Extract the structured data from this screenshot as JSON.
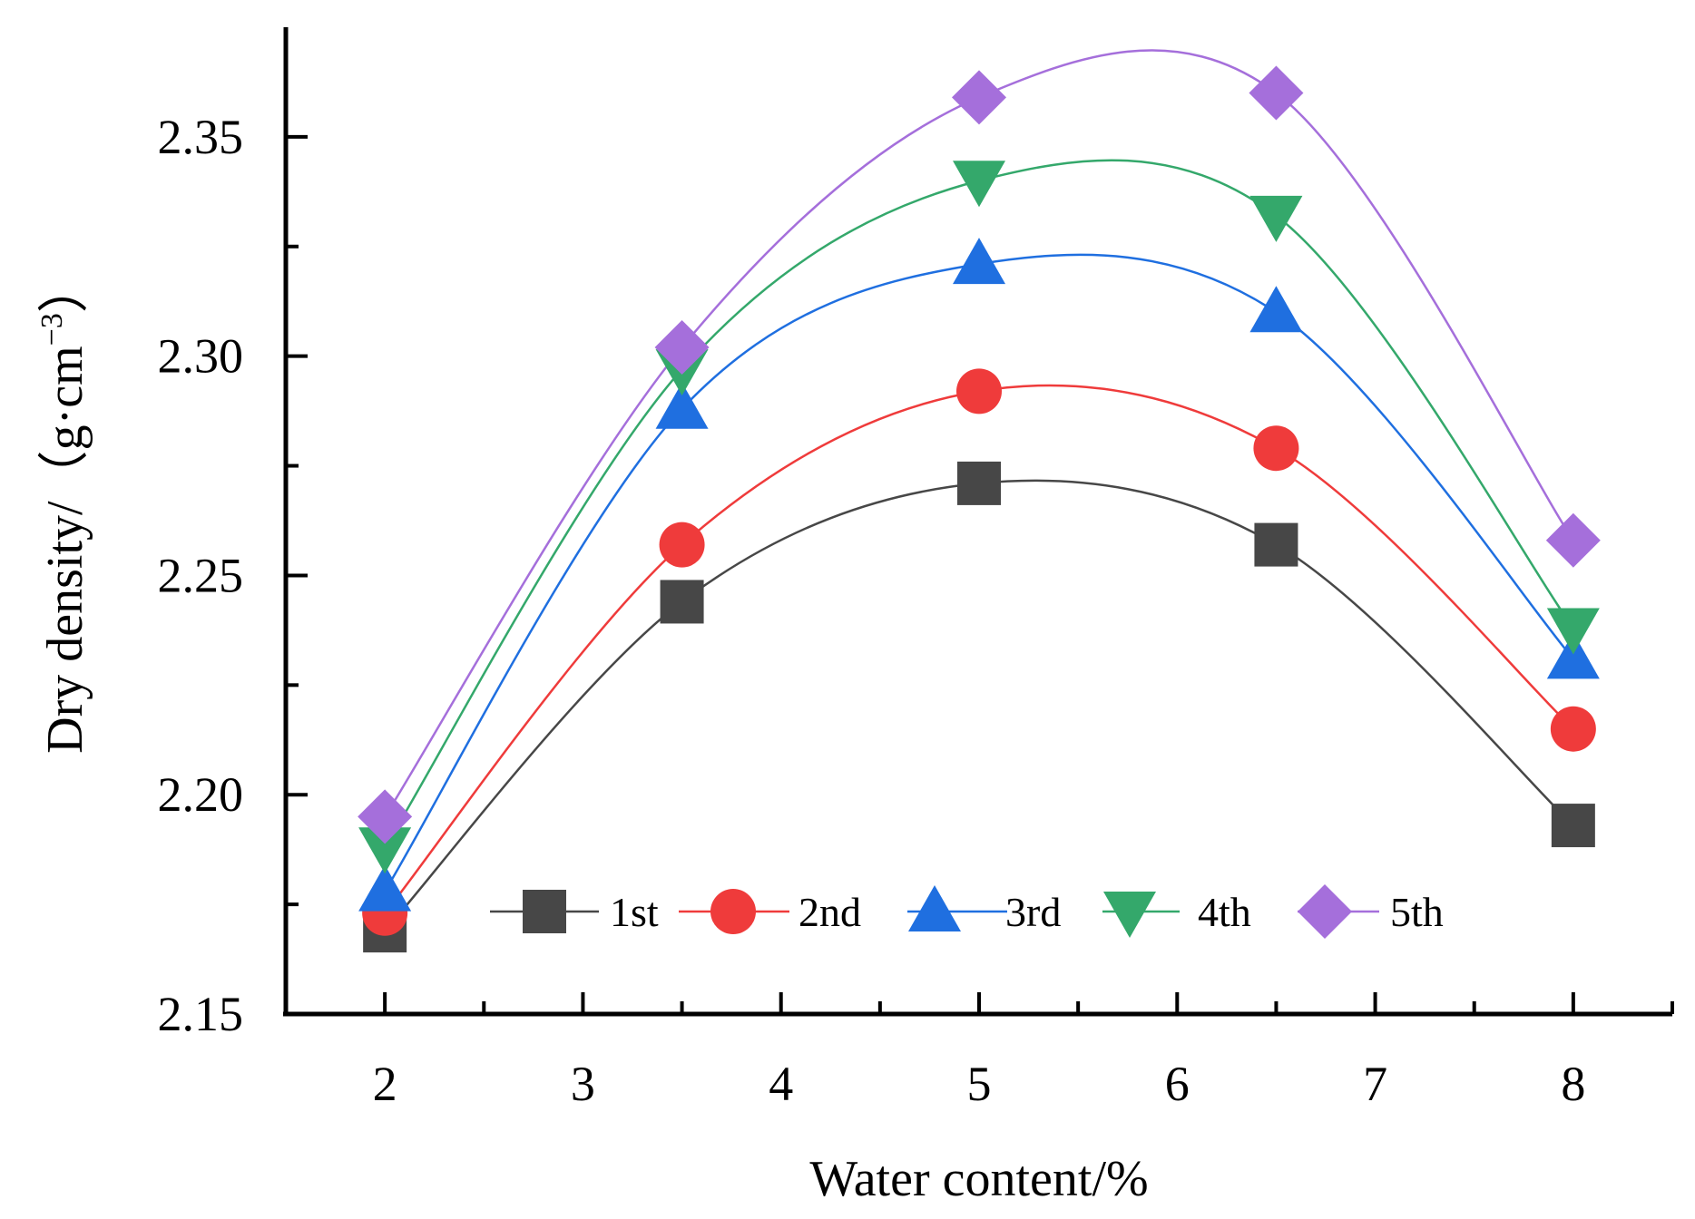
{
  "chart_data": {
    "type": "line",
    "title": "",
    "xlabel": "Water content/%",
    "ylabel_main": "Dry density/",
    "ylabel_unit_open": "（",
    "ylabel_unit_g": "g·cm",
    "ylabel_unit_exp": "−3",
    "ylabel_unit_close": "）",
    "xlim": [
      1.5,
      8.5
    ],
    "ylim": [
      2.15,
      2.375
    ],
    "x_ticks": [
      2,
      3,
      4,
      5,
      6,
      7,
      8
    ],
    "x_tick_labels": [
      "2",
      "3",
      "4",
      "5",
      "6",
      "7",
      "8"
    ],
    "y_ticks": [
      2.15,
      2.2,
      2.25,
      2.3,
      2.35
    ],
    "y_tick_labels": [
      "2.15",
      "2.20",
      "2.25",
      "2.30",
      "2.35"
    ],
    "y_minor_ticks": [
      2.175,
      2.225,
      2.275,
      2.325
    ],
    "x": [
      2,
      3.5,
      5,
      6.5,
      8
    ],
    "legend_position": "bottom-center inside",
    "series": [
      {
        "name": "1st",
        "marker": "square",
        "color": "#474747",
        "values": [
          2.169,
          2.244,
          2.271,
          2.257,
          2.193
        ]
      },
      {
        "name": "2nd",
        "marker": "circle",
        "color": "#ef3b3b",
        "values": [
          2.173,
          2.257,
          2.292,
          2.279,
          2.215
        ]
      },
      {
        "name": "3rd",
        "marker": "triangle-up",
        "color": "#1f6fe0",
        "values": [
          2.178,
          2.288,
          2.321,
          2.31,
          2.231
        ]
      },
      {
        "name": "4th",
        "marker": "triangle-down",
        "color": "#34a86b",
        "values": [
          2.188,
          2.297,
          2.34,
          2.332,
          2.238
        ]
      },
      {
        "name": "5th",
        "marker": "diamond",
        "color": "#a56fdb",
        "values": [
          2.195,
          2.302,
          2.359,
          2.36,
          2.258
        ]
      }
    ]
  }
}
